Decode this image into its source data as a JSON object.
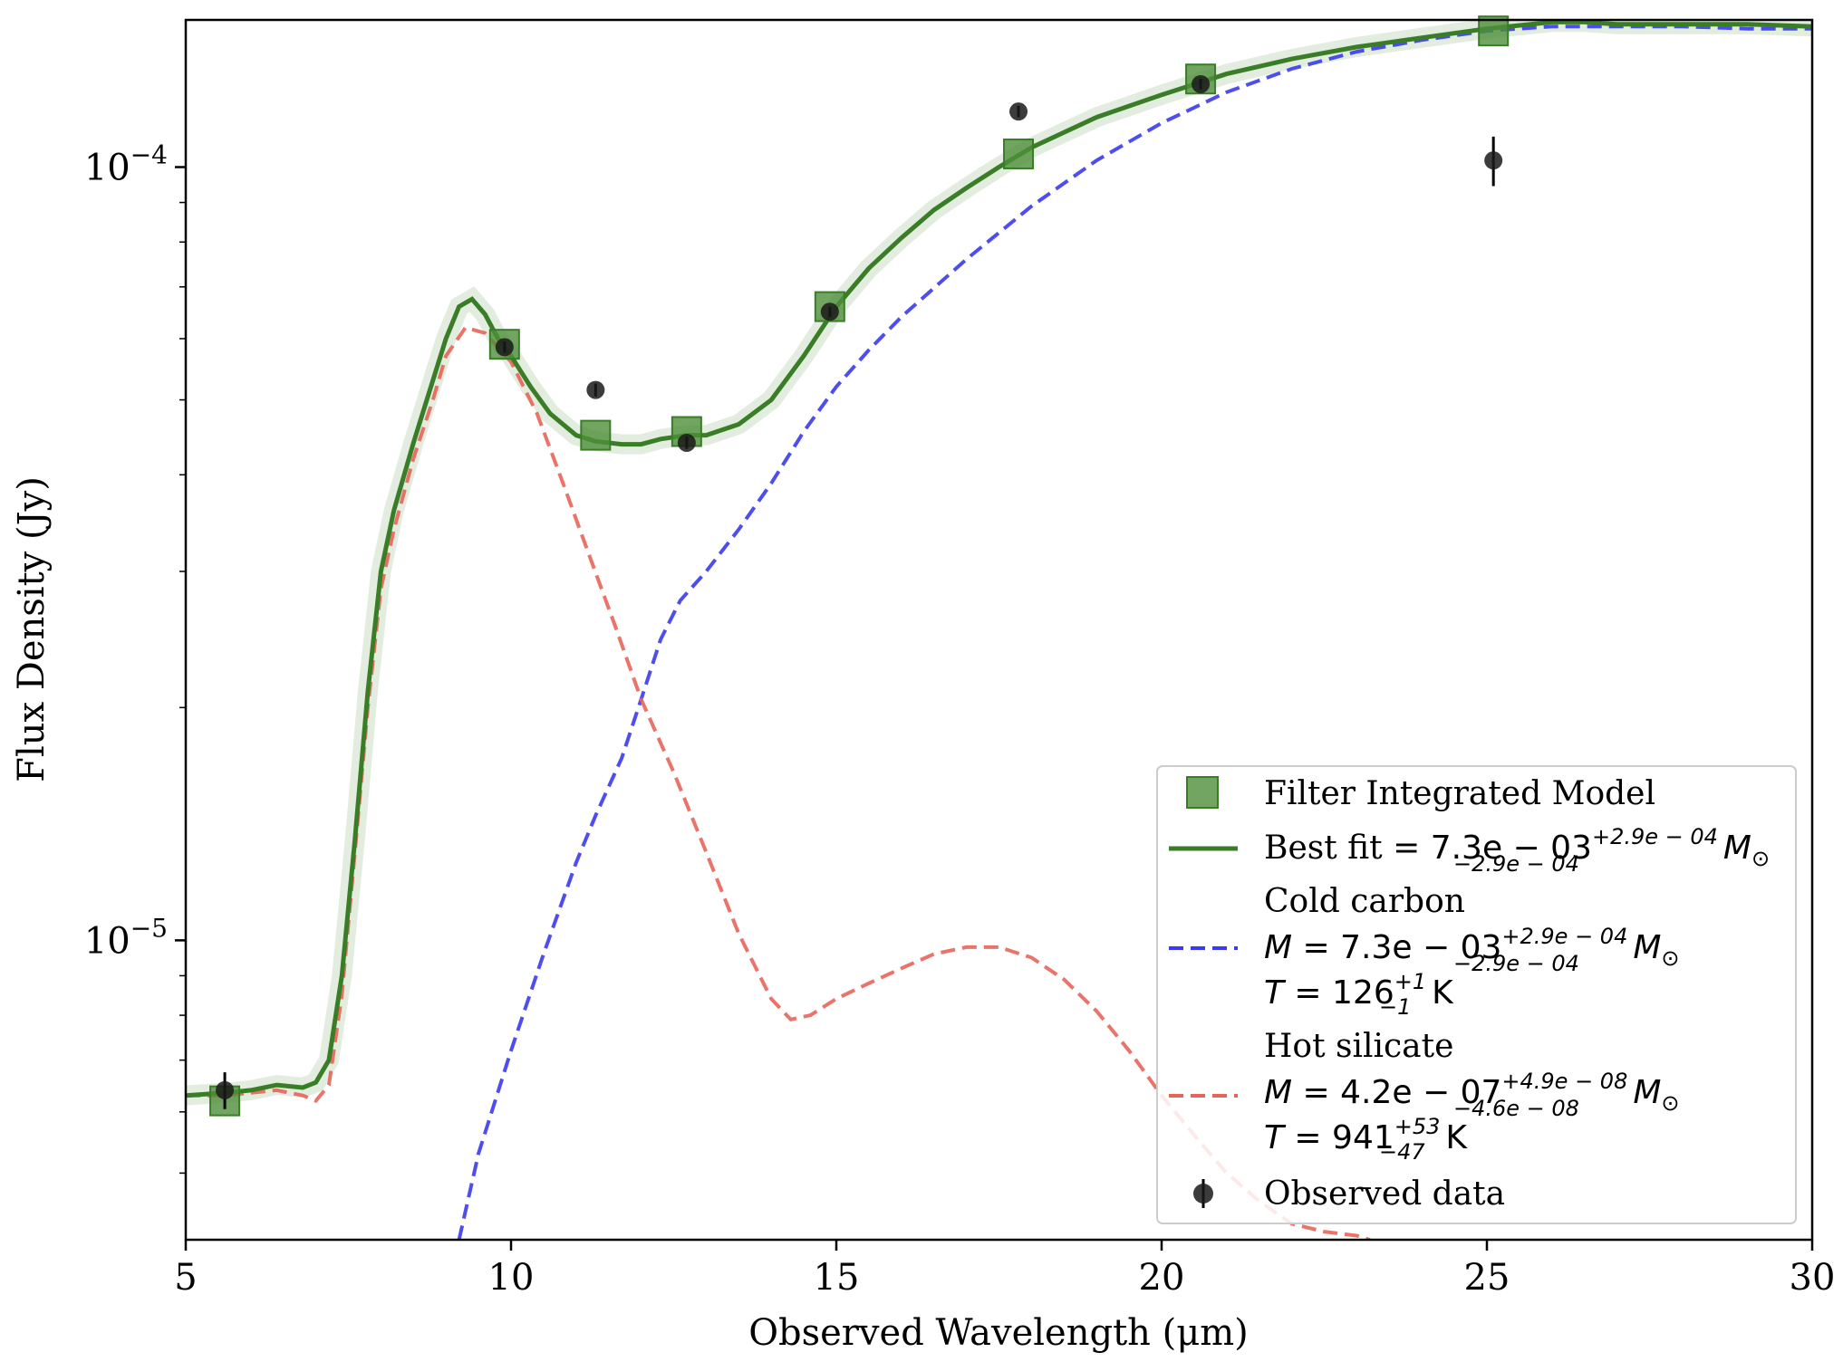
{
  "chart_data": {
    "type": "line",
    "xlabel": "Observed Wavelength (μm)",
    "ylabel": "Flux Density (Jy)",
    "xlim": [
      5,
      30
    ],
    "ylim": [
      4.1e-06,
      0.000155
    ],
    "yscale": "log",
    "x_ticks": [
      5,
      10,
      15,
      20,
      25,
      30
    ],
    "y_ticks": [
      {
        "value": 0.0001,
        "base": "10",
        "exp": "−4"
      },
      {
        "value": 1e-05,
        "base": "10",
        "exp": "−5"
      }
    ],
    "grid": false,
    "legend_position": "bottom-right",
    "colors": {
      "best_fit": "#3a7d27",
      "cold": "#3b3bee",
      "hot": "#e8645a",
      "model_square": "#4f8f3b",
      "observed": "#1a1a1a"
    },
    "legend": {
      "filter_model": "Filter Integrated Model",
      "best_fit": {
        "prefix": "Best fit = ",
        "value": "7.3e − 03",
        "sup": "+2.9e − 04",
        "sub": "−2.9e − 04",
        "unit": "M",
        "unit_sub": "⊙"
      },
      "cold": {
        "title": "Cold carbon",
        "mass_prefix": "M = ",
        "mass_value": "7.3e − 03",
        "mass_sup": "+2.9e − 04",
        "mass_sub": "−2.9e − 04",
        "temp_prefix": "T = ",
        "temp_value": "126",
        "temp_sup": "+1",
        "temp_sub": "−1",
        "temp_unit": "K"
      },
      "hot": {
        "title": "Hot silicate",
        "mass_prefix": "M = ",
        "mass_value": "4.2e − 07",
        "mass_sup": "+4.9e − 08",
        "mass_sub": "−4.6e − 08",
        "temp_prefix": "T = ",
        "temp_value": "941",
        "temp_sup": "+53",
        "temp_sub": "−47",
        "temp_unit": "K"
      },
      "observed": "Observed data"
    },
    "series": [
      {
        "name": "Best fit",
        "x": [
          5.0,
          5.6,
          6.0,
          6.4,
          6.8,
          7.0,
          7.2,
          7.4,
          7.6,
          7.8,
          8.0,
          8.2,
          8.5,
          8.8,
          9.0,
          9.2,
          9.4,
          9.6,
          9.8,
          10.0,
          10.3,
          10.6,
          11.0,
          11.3,
          11.7,
          12.0,
          12.3,
          12.7,
          13.0,
          13.5,
          14.0,
          14.5,
          15.0,
          15.5,
          16.0,
          16.5,
          17.0,
          17.5,
          18.0,
          19.0,
          20.0,
          21.0,
          22.0,
          23.0,
          24.0,
          25.0,
          26.0,
          26.5,
          27.0,
          28.0,
          29.0,
          30.0
        ],
        "y": [
          6.3e-06,
          6.35e-06,
          6.4e-06,
          6.5e-06,
          6.45e-06,
          6.55e-06,
          7e-06,
          9e-06,
          1.35e-05,
          2.1e-05,
          3e-05,
          3.6e-05,
          4.4e-05,
          5.3e-05,
          6e-05,
          6.6e-05,
          6.75e-05,
          6.45e-05,
          6e-05,
          5.7e-05,
          5.2e-05,
          4.8e-05,
          4.5e-05,
          4.42e-05,
          4.38e-05,
          4.38e-05,
          4.45e-05,
          4.5e-05,
          4.5e-05,
          4.65e-05,
          5e-05,
          5.7e-05,
          6.6e-05,
          7.4e-05,
          8.1e-05,
          8.8e-05,
          9.4e-05,
          0.0001,
          0.000106,
          0.000116,
          0.000124,
          0.000132,
          0.000138,
          0.000143,
          0.000147,
          0.000151,
          0.000154,
          0.000154,
          0.000153,
          0.000153,
          0.000153,
          0.000152
        ]
      },
      {
        "name": "Cold carbon",
        "x": [
          9.2,
          9.5,
          10.0,
          10.5,
          11.0,
          11.3,
          11.7,
          12.0,
          12.3,
          12.6,
          13.0,
          13.5,
          14.0,
          14.5,
          15.0,
          15.5,
          16.0,
          17.0,
          18.0,
          19.0,
          20.0,
          21.0,
          22.0,
          23.0,
          24.0,
          25.0,
          26.0,
          27.0,
          28.0,
          29.0,
          30.0
        ],
        "y": [
          4.1e-06,
          5.3e-06,
          7.2e-06,
          9.6e-06,
          1.26e-05,
          1.45e-05,
          1.72e-05,
          2.05e-05,
          2.45e-05,
          2.75e-05,
          3e-05,
          3.4e-05,
          3.9e-05,
          4.55e-05,
          5.2e-05,
          5.8e-05,
          6.4e-05,
          7.6e-05,
          8.9e-05,
          0.000102,
          0.000114,
          0.000125,
          0.000134,
          0.000141,
          0.000146,
          0.00015,
          0.000152,
          0.000152,
          0.000152,
          0.000151,
          0.000151
        ]
      },
      {
        "name": "Hot silicate",
        "x": [
          5.0,
          5.6,
          6.0,
          6.4,
          6.8,
          7.0,
          7.2,
          7.4,
          7.6,
          7.8,
          8.0,
          8.2,
          8.5,
          8.8,
          9.0,
          9.3,
          9.6,
          10.0,
          10.4,
          10.8,
          11.2,
          11.6,
          12.0,
          12.5,
          13.0,
          13.5,
          14.0,
          14.3,
          14.6,
          15.0,
          15.5,
          16.0,
          16.5,
          17.0,
          17.5,
          18.0,
          18.5,
          19.0,
          19.5,
          20.0,
          20.5,
          21.0,
          21.5,
          22.0,
          22.5,
          23.0,
          23.2
        ],
        "y": [
          6.3e-06,
          6.3e-06,
          6.35e-06,
          6.4e-06,
          6.3e-06,
          6.2e-06,
          6.5e-06,
          8.5e-06,
          1.3e-05,
          2e-05,
          2.85e-05,
          3.4e-05,
          4.2e-05,
          5e-05,
          5.7e-05,
          6.2e-05,
          6.1e-05,
          5.6e-05,
          4.8e-05,
          3.9e-05,
          3.15e-05,
          2.55e-05,
          2.05e-05,
          1.65e-05,
          1.3e-05,
          1.02e-05,
          8.4e-06,
          7.9e-06,
          8e-06,
          8.4e-06,
          8.8e-06,
          9.2e-06,
          9.6e-06,
          9.8e-06,
          9.8e-06,
          9.5e-06,
          8.9e-06,
          8.1e-06,
          7.2e-06,
          6.3e-06,
          5.6e-06,
          5e-06,
          4.6e-06,
          4.3e-06,
          4.2e-06,
          4.15e-06,
          4.1e-06
        ]
      },
      {
        "name": "Filter Integrated Model",
        "x": [
          5.6,
          9.9,
          11.3,
          12.7,
          14.9,
          17.8,
          20.6,
          25.1
        ],
        "y": [
          6.2e-06,
          5.9e-05,
          4.5e-05,
          4.55e-05,
          6.6e-05,
          0.000104,
          0.00013,
          0.00015
        ]
      },
      {
        "name": "Observed data",
        "x": [
          5.6,
          9.9,
          11.3,
          12.7,
          14.9,
          17.8,
          20.6,
          25.1
        ],
        "y": [
          6.4e-06,
          5.85e-05,
          5.15e-05,
          4.4e-05,
          6.5e-05,
          0.000118,
          0.000128,
          0.000102
        ],
        "yerr": [
          3.5e-07,
          1e-06,
          1e-06,
          8e-07,
          1e-06,
          2e-06,
          2e-06,
          7.5e-06
        ]
      }
    ]
  }
}
